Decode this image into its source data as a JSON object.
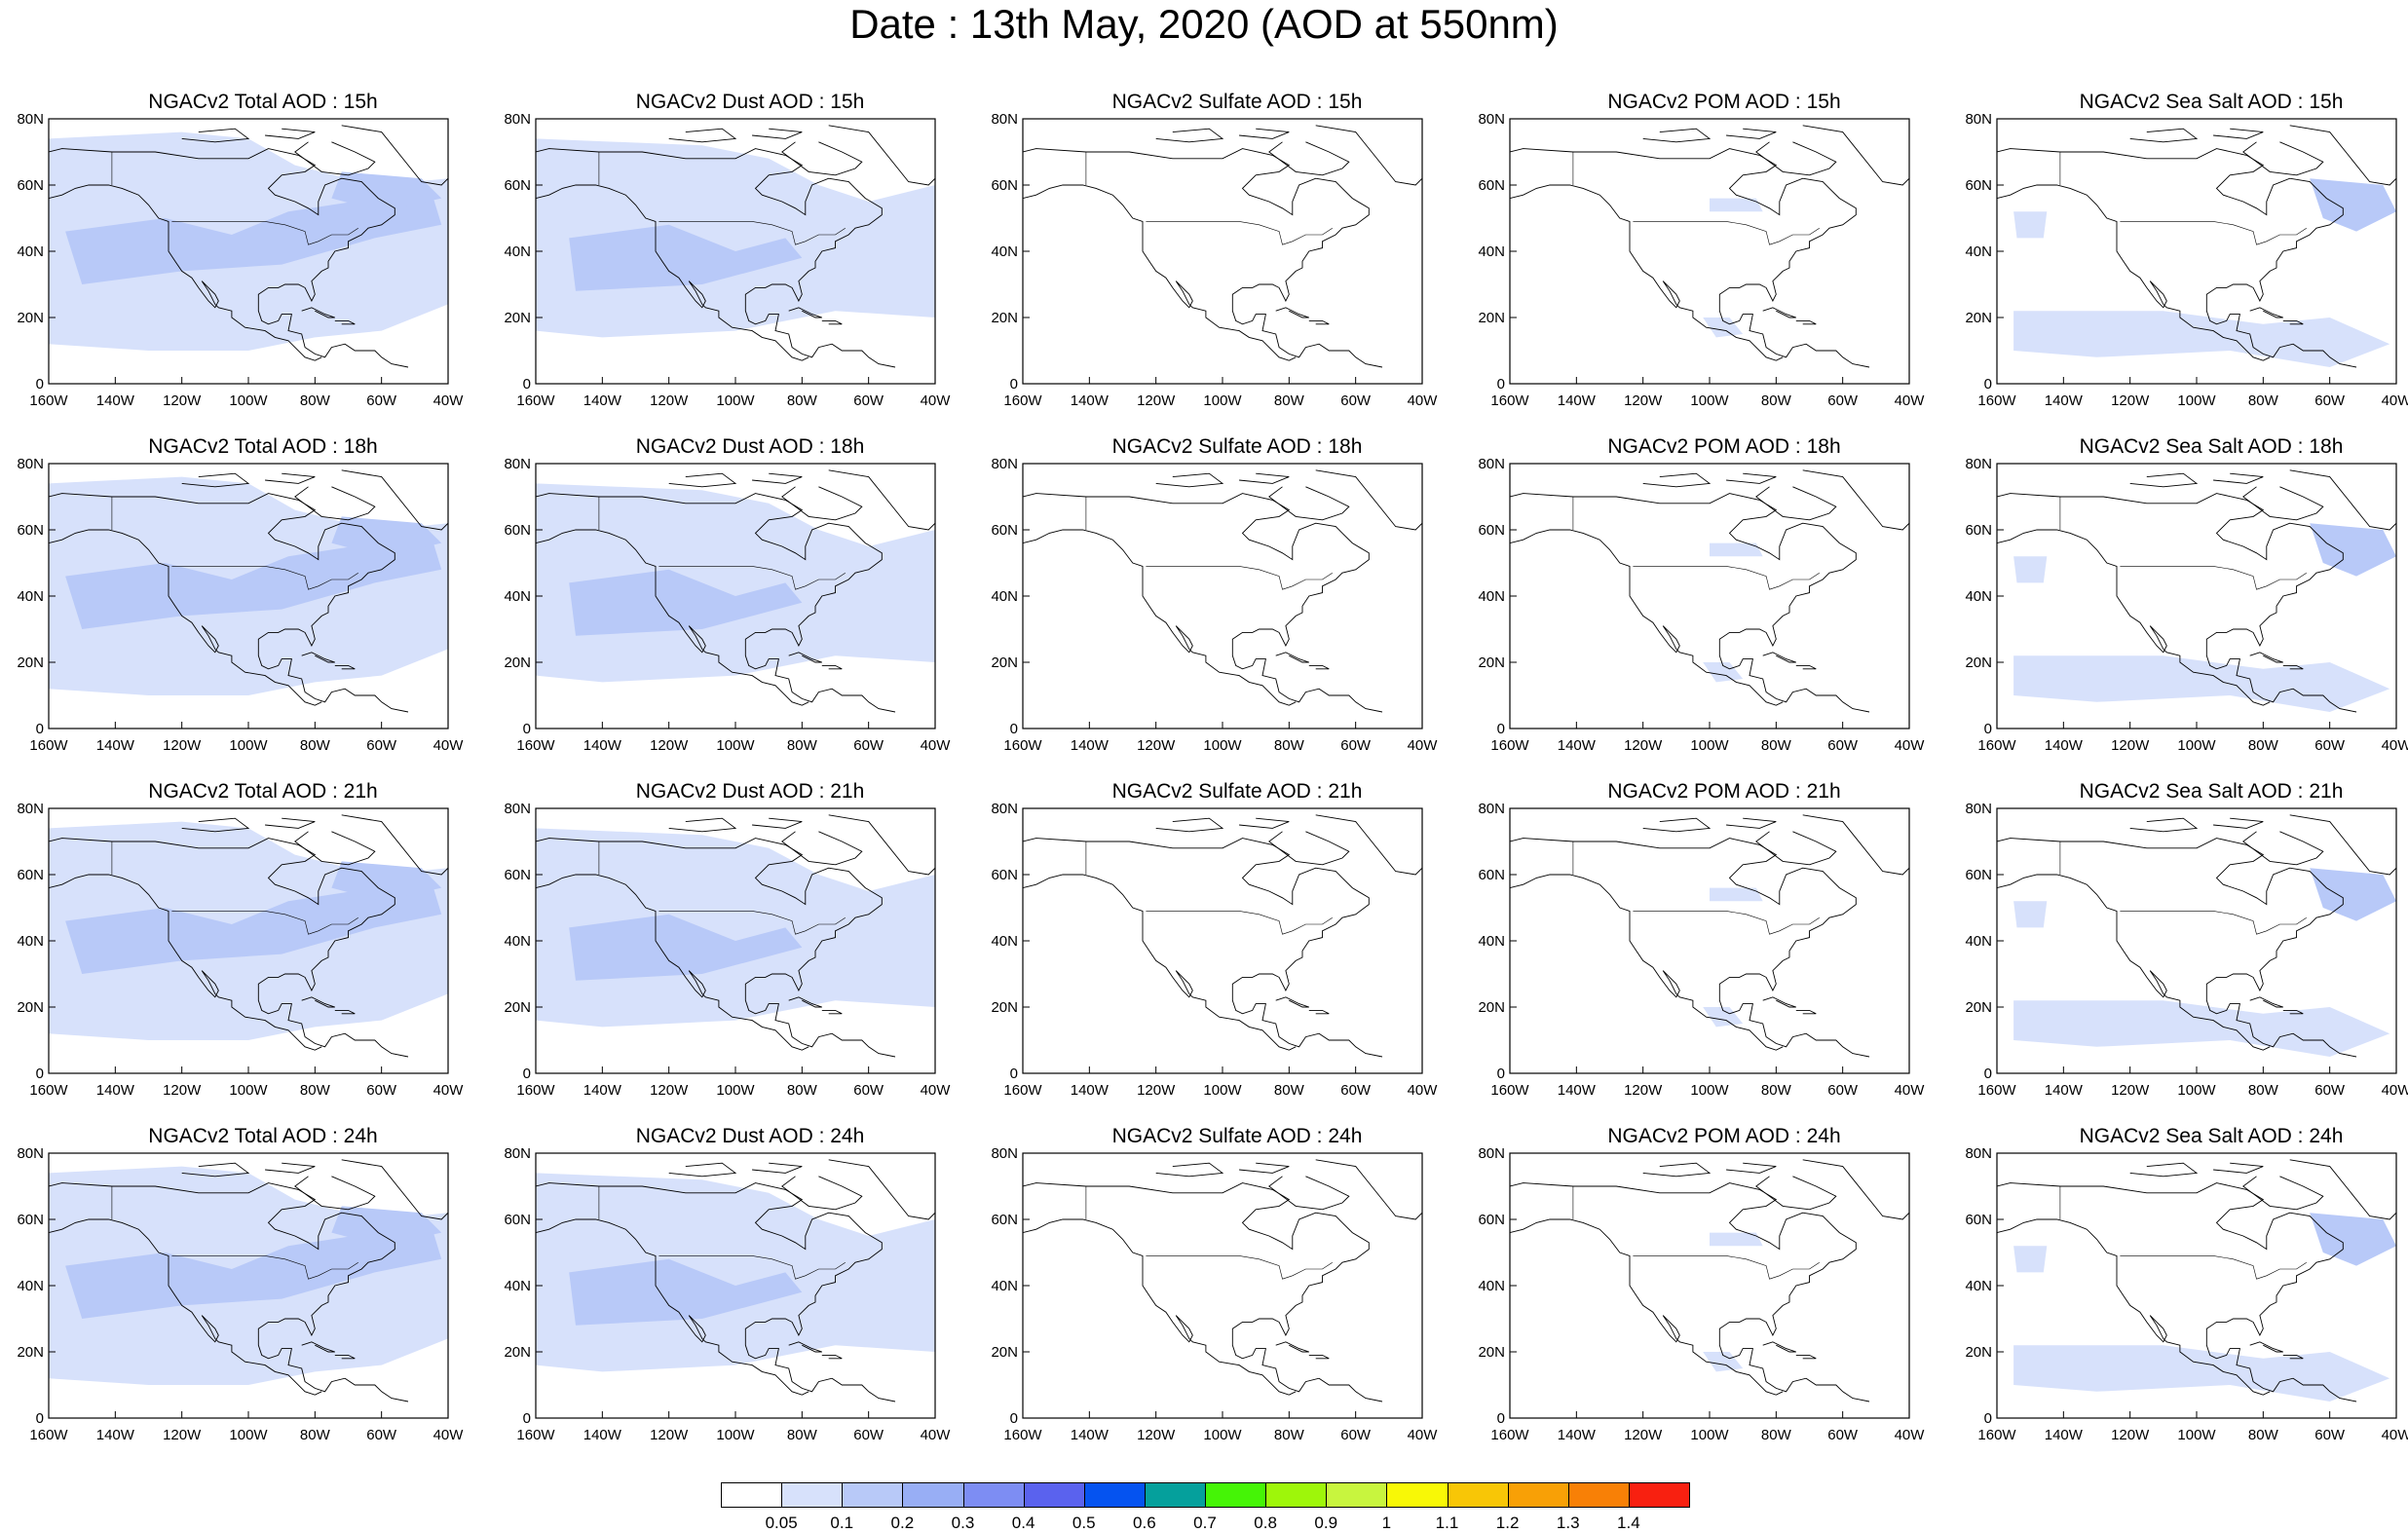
{
  "title": "Date : 13th May, 2020 (AOD at 550nm)",
  "species_panels": [
    {
      "species": "Total",
      "titles": [
        "NGACv2 Total AOD : 15h",
        "NGACv2 Total AOD : 18h",
        "NGACv2 Total AOD : 21h",
        "NGACv2 Total AOD : 24h"
      ]
    },
    {
      "species": "Dust",
      "titles": [
        "NGACv2 Dust AOD : 15h",
        "NGACv2 Dust AOD : 18h",
        "NGACv2 Dust AOD : 21h",
        "NGACv2 Dust AOD : 24h"
      ]
    },
    {
      "species": "Sulfate",
      "titles": [
        "NGACv2 Sulfate AOD : 15h",
        "NGACv2 Sulfate AOD : 18h",
        "NGACv2 Sulfate AOD : 21h",
        "NGACv2 Sulfate AOD : 24h"
      ]
    },
    {
      "species": "POM",
      "titles": [
        "NGACv2 POM AOD : 15h",
        "NGACv2 POM AOD : 18h",
        "NGACv2 POM AOD : 21h",
        "NGACv2 POM AOD : 24h"
      ]
    },
    {
      "species": "Sea Salt",
      "titles": [
        "NGACv2 Sea Salt AOD : 15h",
        "NGACv2 Sea Salt AOD : 18h",
        "NGACv2 Sea Salt AOD : 21h",
        "NGACv2 Sea Salt  AOD : 24h"
      ]
    }
  ],
  "lat_labels": [
    "80N",
    "60N",
    "40N",
    "20N",
    "0"
  ],
  "lon_labels": [
    "160W",
    "140W",
    "120W",
    "100W",
    "80W",
    "60W",
    "40W"
  ],
  "colorbar": {
    "labels": [
      "0.05",
      "0.1",
      "0.2",
      "0.3",
      "0.4",
      "0.5",
      "0.6",
      "0.7",
      "0.8",
      "0.9",
      "1",
      "1.1",
      "1.2",
      "1.3",
      "1.4"
    ],
    "colors": [
      "#ffffff",
      "#d7e1fb",
      "#b8c9f8",
      "#98aef5",
      "#7d8df3",
      "#5a62ee",
      "#0553f0",
      "#05a09c",
      "#45f406",
      "#9ef60a",
      "#c8f53e",
      "#f8f806",
      "#f8c606",
      "#f8a006",
      "#f88006",
      "#f82010"
    ]
  },
  "colors": {
    "aod_light": "#d7e1fb",
    "aod_mid": "#b8c9f8",
    "coastline": "#000000"
  }
}
